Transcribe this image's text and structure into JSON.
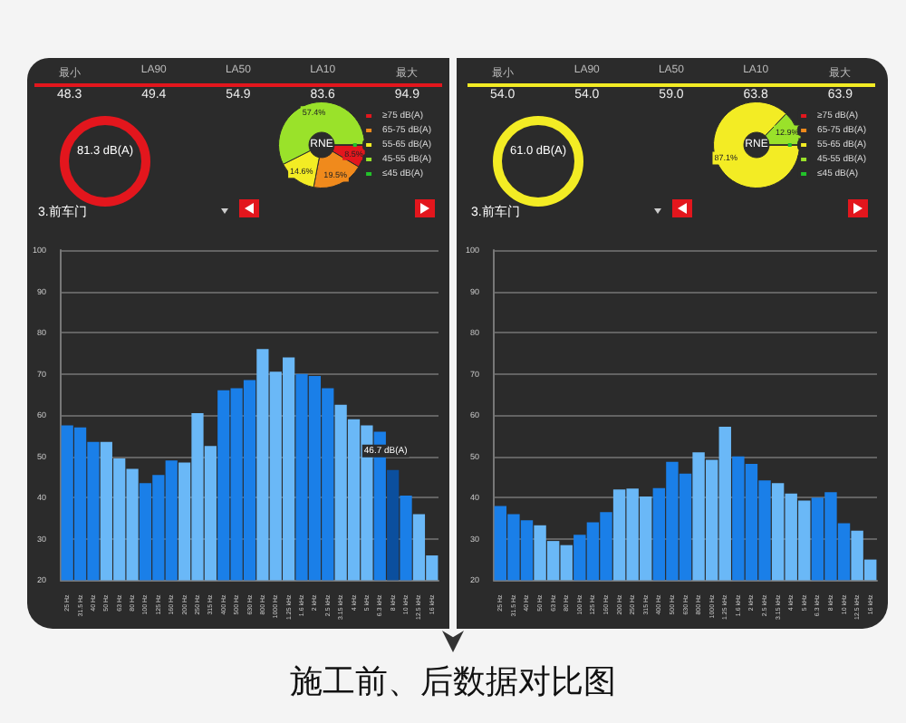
{
  "chart_data": [
    {
      "type": "other",
      "categories": [
        "最小",
        "LA90",
        "LA50",
        "LA10",
        "最大"
      ],
      "series": [
        {
          "color": "#e3161d",
          "values": [
            48.3,
            49.4,
            54.9,
            83.6,
            94.9
          ],
          "value_labels": [
            "48.3",
            "49.4",
            "54.9",
            "83.6",
            "94.9"
          ]
        }
      ],
      "data_labels": true,
      "annotations": [
        "81.3 dB(A)",
        "3.前车门"
      ]
    },
    {
      "type": "donut",
      "categories": [
        "≥75 dB(A)",
        "65-75 dB(A)",
        "55-65 dB(A)",
        "45-55 dB(A)",
        "≤45 dB(A)"
      ],
      "values": [
        8.5,
        19.5,
        14.6,
        57.4,
        0
      ],
      "value_labels": [
        "8.5%",
        "19.5%",
        "14.6%",
        "57.4%",
        null
      ],
      "colors": [
        "#e3161d",
        "#f08a1c",
        "#f3ec24",
        "#9ae22a",
        "#22c22a"
      ],
      "legend": "right",
      "annotations": [
        "RNE"
      ]
    },
    {
      "type": "bar",
      "categories": [
        "25 Hz",
        "31.5 Hz",
        "40 Hz",
        "50 Hz",
        "63 Hz",
        "80 Hz",
        "100 Hz",
        "125 Hz",
        "160 Hz",
        "200 Hz",
        "250 Hz",
        "315 Hz",
        "400 Hz",
        "500 Hz",
        "630 Hz",
        "800 Hz",
        "1000 Hz",
        "1.25 kHz",
        "1.6 kHz",
        "2 kHz",
        "2.5 kHz",
        "3.15 kHz",
        "4 kHz",
        "5 kHz",
        "6.3 kHz",
        "8 kHz",
        "10 kHz",
        "12.5 kHz",
        "16 kHz"
      ],
      "values": [
        57.5,
        57,
        53.5,
        53.5,
        49.5,
        47,
        43.5,
        45.5,
        49,
        48.5,
        60.5,
        52.5,
        66,
        66.5,
        68.5,
        76,
        70.5,
        74,
        70,
        69.5,
        66.5,
        62.5,
        59,
        57.5,
        56,
        46.7,
        40.5,
        36,
        26
      ],
      "colors": [
        "#1a7fe8",
        "#1a7fe8",
        "#1a7fe8",
        "#6ab8f7",
        "#6ab8f7",
        "#6ab8f7",
        "#1a7fe8",
        "#1a7fe8",
        "#1a7fe8",
        "#6ab8f7",
        "#6ab8f7",
        "#6ab8f7",
        "#1a7fe8",
        "#1a7fe8",
        "#1a7fe8",
        "#6ab8f7",
        "#6ab8f7",
        "#6ab8f7",
        "#1a7fe8",
        "#1a7fe8",
        "#1a7fe8",
        "#6ab8f7",
        "#6ab8f7",
        "#6ab8f7",
        "#1a7fe8",
        "#0b4f9e",
        "#1a7fe8",
        "#6ab8f7",
        "#6ab8f7"
      ],
      "ylim": [
        20,
        100
      ],
      "yticks": [
        20,
        30,
        40,
        50,
        60,
        70,
        80,
        90,
        100
      ],
      "grid": "y",
      "annotations": [
        {
          "text": "46.7 dB(A)",
          "x": "8 kHz",
          "y": 46.7
        }
      ]
    },
    {
      "type": "other",
      "categories": [
        "最小",
        "LA90",
        "LA50",
        "LA10",
        "最大"
      ],
      "series": [
        {
          "color": "#f3ec24",
          "values": [
            54.0,
            54.0,
            59.0,
            63.8,
            63.9
          ],
          "value_labels": [
            "54.0",
            "54.0",
            "59.0",
            "63.8",
            "63.9"
          ]
        }
      ],
      "data_labels": true,
      "annotations": [
        "61.0 dB(A)",
        "3.前车门"
      ]
    },
    {
      "type": "donut",
      "categories": [
        "≥75 dB(A)",
        "65-75 dB(A)",
        "55-65 dB(A)",
        "45-55 dB(A)",
        "≤45 dB(A)"
      ],
      "values": [
        0,
        0,
        87.1,
        12.9,
        0
      ],
      "value_labels": [
        null,
        null,
        "87.1%",
        "12.9%",
        null
      ],
      "colors": [
        "#e3161d",
        "#f08a1c",
        "#f3ec24",
        "#9ae22a",
        "#22c22a"
      ],
      "legend": "right",
      "annotations": [
        "RNE"
      ]
    },
    {
      "type": "bar",
      "categories": [
        "25 Hz",
        "31.5 Hz",
        "40 Hz",
        "50 Hz",
        "63 Hz",
        "80 Hz",
        "100 Hz",
        "125 Hz",
        "160 Hz",
        "200 Hz",
        "250 Hz",
        "315 Hz",
        "400 Hz",
        "500 Hz",
        "630 Hz",
        "800 Hz",
        "1000 Hz",
        "1.25 kHz",
        "1.6 kHz",
        "2 kHz",
        "2.5 kHz",
        "3.15 kHz",
        "4 kHz",
        "5 kHz",
        "6.3 kHz",
        "8 kHz",
        "10 kHz",
        "12.5 kHz",
        "16 kHz"
      ],
      "values": [
        38,
        36,
        34.5,
        33.3,
        29.5,
        28.5,
        31,
        34,
        36.5,
        42,
        42.2,
        40.3,
        42.3,
        48.7,
        45.8,
        51,
        49.2,
        57.2,
        50,
        48.2,
        44.2,
        43.5,
        41,
        39.3,
        40,
        41.3,
        33.8,
        32,
        25
      ],
      "colors": [
        "#1a7fe8",
        "#1a7fe8",
        "#1a7fe8",
        "#6ab8f7",
        "#6ab8f7",
        "#6ab8f7",
        "#1a7fe8",
        "#1a7fe8",
        "#1a7fe8",
        "#6ab8f7",
        "#6ab8f7",
        "#6ab8f7",
        "#1a7fe8",
        "#1a7fe8",
        "#1a7fe8",
        "#6ab8f7",
        "#6ab8f7",
        "#6ab8f7",
        "#1a7fe8",
        "#1a7fe8",
        "#1a7fe8",
        "#6ab8f7",
        "#6ab8f7",
        "#6ab8f7",
        "#1a7fe8",
        "#1a7fe8",
        "#1a7fe8",
        "#6ab8f7",
        "#6ab8f7"
      ],
      "ylim": [
        20,
        100
      ],
      "yticks": [
        20,
        30,
        40,
        50,
        60,
        70,
        80,
        90,
        100
      ],
      "grid": "y"
    },
    {
      "type": "other",
      "title": "施工前、后数据对比图"
    }
  ]
}
